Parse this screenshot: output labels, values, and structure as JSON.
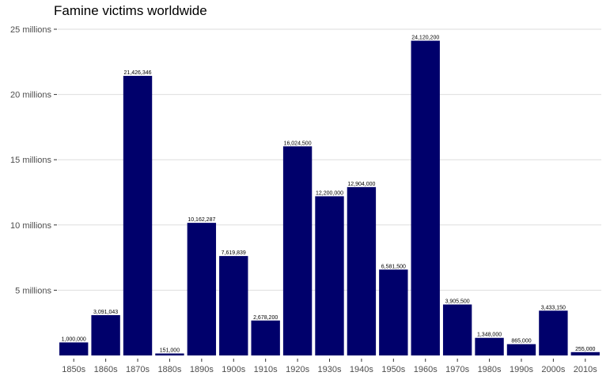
{
  "chart_data": {
    "type": "bar",
    "title": "Famine victims worldwide",
    "xlabel": "",
    "ylabel": "",
    "categories": [
      "1850s",
      "1860s",
      "1870s",
      "1880s",
      "1890s",
      "1900s",
      "1910s",
      "1920s",
      "1930s",
      "1940s",
      "1950s",
      "1960s",
      "1970s",
      "1980s",
      "1990s",
      "2000s",
      "2010s"
    ],
    "values": [
      1000000,
      3091043,
      21426346,
      151000,
      10162287,
      7619839,
      2678200,
      16024500,
      12200000,
      12904000,
      6581500,
      24120200,
      3905500,
      1348000,
      865000,
      3433150,
      255000
    ],
    "data_labels": [
      "1,000,000",
      "3,091,043",
      "21,426,346",
      "151,000",
      "10,162,287",
      "7,619,839",
      "2,678,200",
      "16,024,500",
      "12,200,000",
      "12,904,000",
      "6,581,500",
      "24,120,200",
      "3,905,500",
      "1,348,000",
      "865,000",
      "3,433,150",
      "255,000"
    ],
    "y_ticks": [
      {
        "value": 5000000,
        "label": "5 millions"
      },
      {
        "value": 10000000,
        "label": "10 millions"
      },
      {
        "value": 15000000,
        "label": "15 millions"
      },
      {
        "value": 20000000,
        "label": "20 millions"
      },
      {
        "value": 25000000,
        "label": "25 millions"
      }
    ],
    "ylim": [
      0,
      25000000
    ],
    "grid": "horizontal",
    "legend": "none",
    "colors": {
      "bar": "#00006b",
      "grid": "#dedede",
      "axis_text": "#4d4d4d"
    }
  }
}
